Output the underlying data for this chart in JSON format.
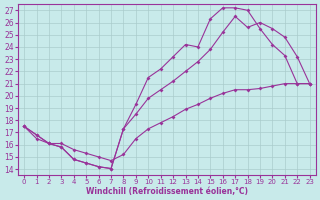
{
  "xlabel": "Windchill (Refroidissement éolien,°C)",
  "bg_color": "#c8eaea",
  "grid_color": "#aacccc",
  "line_color": "#993399",
  "ylim": [
    13.5,
    27.5
  ],
  "xlim": [
    -0.5,
    23.5
  ],
  "yticks": [
    14,
    15,
    16,
    17,
    18,
    19,
    20,
    21,
    22,
    23,
    24,
    25,
    26,
    27
  ],
  "xticks": [
    0,
    1,
    2,
    3,
    4,
    5,
    6,
    7,
    8,
    9,
    10,
    11,
    12,
    13,
    14,
    15,
    16,
    17,
    18,
    19,
    20,
    21,
    22,
    23
  ],
  "line1_x": [
    0,
    1,
    2,
    3,
    4,
    5,
    6,
    7,
    8,
    9,
    10,
    11,
    12,
    13,
    14,
    15,
    16,
    17,
    18,
    19,
    20,
    21,
    22,
    23
  ],
  "line1_y": [
    17.5,
    16.8,
    16.1,
    15.8,
    14.8,
    14.5,
    14.2,
    14.05,
    17.3,
    19.3,
    21.5,
    22.2,
    23.2,
    24.2,
    24.0,
    26.3,
    27.2,
    27.2,
    27.0,
    25.5,
    24.2,
    23.3,
    21.0,
    21.0
  ],
  "line2_x": [
    0,
    1,
    2,
    3,
    4,
    5,
    6,
    7,
    8,
    9,
    10,
    11,
    12,
    13,
    14,
    15,
    16,
    17,
    18,
    19,
    20,
    21,
    22,
    23
  ],
  "line2_y": [
    17.5,
    16.8,
    16.1,
    15.8,
    14.8,
    14.5,
    14.2,
    14.05,
    17.3,
    18.5,
    19.8,
    20.5,
    21.2,
    22.0,
    22.8,
    23.8,
    25.2,
    26.5,
    25.6,
    26.0,
    25.5,
    24.8,
    23.2,
    21.0
  ],
  "line3_x": [
    0,
    1,
    2,
    3,
    4,
    5,
    6,
    7,
    8,
    9,
    10,
    11,
    12,
    13,
    14,
    15,
    16,
    17,
    18,
    19,
    20,
    21,
    22,
    23
  ],
  "line3_y": [
    17.5,
    16.5,
    16.1,
    16.1,
    15.6,
    15.3,
    15.0,
    14.7,
    15.2,
    16.5,
    17.3,
    17.8,
    18.3,
    18.9,
    19.3,
    19.8,
    20.2,
    20.5,
    20.5,
    20.6,
    20.8,
    21.0,
    21.0,
    21.0
  ]
}
